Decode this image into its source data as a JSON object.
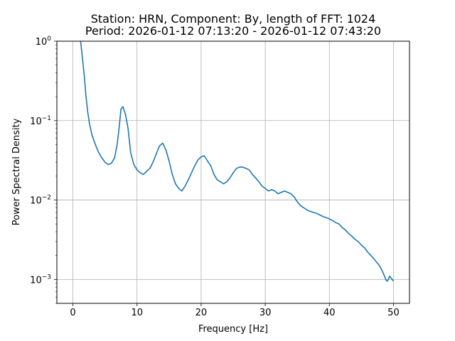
{
  "chart_data": {
    "type": "line",
    "title_line1": "Station: HRN, Component: By, length of FFT: 1024",
    "title_line2": "Period: 2026-01-12 07:13:20 - 2026-01-12 07:43:20",
    "xlabel": "Frequency [Hz]",
    "ylabel": "Power Spectral Density",
    "xlim": [
      -2.5,
      52.5
    ],
    "ylim": [
      0.0005,
      1
    ],
    "yscale": "log",
    "grid": true,
    "x_ticks": [
      0,
      10,
      20,
      30,
      40,
      50
    ],
    "x_tick_labels": [
      "0",
      "10",
      "20",
      "30",
      "40",
      "50"
    ],
    "y_ticks": [
      0.001,
      0.01,
      0.1,
      1
    ],
    "y_tick_labels": [
      {
        "base": "10",
        "exp": "−3"
      },
      {
        "base": "10",
        "exp": "−2"
      },
      {
        "base": "10",
        "exp": "−1"
      },
      {
        "base": "10",
        "exp": "0"
      }
    ],
    "color": "#1f77b4",
    "series": [
      {
        "x": [
          1.2,
          1.5,
          1.8,
          2.0,
          2.3,
          2.6,
          3.0,
          3.5,
          4.0,
          4.5,
          5.0,
          5.5,
          6.0,
          6.5,
          6.9,
          7.2,
          7.5,
          7.8,
          8.2,
          8.6,
          9.0,
          9.5,
          10.0,
          10.5,
          11.0,
          11.5,
          12.0,
          12.5,
          13.0,
          13.5,
          14.0,
          14.5,
          15.0,
          15.5,
          16.0,
          16.5,
          17.0,
          17.5,
          18.0,
          18.5,
          19.0,
          19.5,
          20.0,
          20.5,
          21.0,
          21.5,
          22.0,
          22.5,
          23.0,
          23.5,
          24.0,
          24.5,
          25.0,
          25.5,
          26.0,
          26.5,
          27.0,
          27.5,
          28.0,
          28.5,
          29.0,
          29.5,
          30.0,
          30.5,
          31.0,
          31.5,
          32.0,
          32.5,
          33.0,
          33.5,
          34.0,
          34.5,
          35.0,
          35.5,
          36.0,
          36.5,
          37.0,
          37.5,
          38.0,
          38.5,
          39.0,
          39.5,
          40.0,
          40.5,
          41.0,
          41.5,
          42.0,
          42.5,
          43.0,
          43.5,
          44.0,
          44.5,
          45.0,
          45.5,
          46.0,
          46.5,
          47.0,
          47.5,
          47.8,
          48.0,
          48.2,
          48.4,
          48.6,
          48.8,
          49.0,
          49.2,
          49.4,
          49.6,
          49.8,
          50.0
        ],
        "y": [
          1.0,
          0.6,
          0.35,
          0.22,
          0.13,
          0.09,
          0.065,
          0.05,
          0.04,
          0.034,
          0.03,
          0.028,
          0.029,
          0.034,
          0.05,
          0.08,
          0.14,
          0.15,
          0.12,
          0.08,
          0.04,
          0.028,
          0.024,
          0.022,
          0.021,
          0.023,
          0.025,
          0.03,
          0.038,
          0.048,
          0.052,
          0.043,
          0.031,
          0.021,
          0.016,
          0.014,
          0.013,
          0.015,
          0.018,
          0.022,
          0.027,
          0.032,
          0.035,
          0.036,
          0.031,
          0.027,
          0.021,
          0.018,
          0.017,
          0.016,
          0.017,
          0.019,
          0.022,
          0.025,
          0.026,
          0.026,
          0.025,
          0.024,
          0.021,
          0.019,
          0.017,
          0.015,
          0.014,
          0.013,
          0.0135,
          0.013,
          0.012,
          0.0125,
          0.013,
          0.0125,
          0.012,
          0.011,
          0.0095,
          0.0085,
          0.008,
          0.0075,
          0.0072,
          0.007,
          0.0068,
          0.0065,
          0.0062,
          0.006,
          0.0058,
          0.0055,
          0.0052,
          0.005,
          0.0045,
          0.0042,
          0.0038,
          0.0035,
          0.0032,
          0.003,
          0.0027,
          0.0025,
          0.0022,
          0.002,
          0.0018,
          0.0016,
          0.0015,
          0.0014,
          0.0013,
          0.0012,
          0.0011,
          0.001,
          0.00095,
          0.001,
          0.0011,
          0.00105,
          0.001,
          0.00095
        ]
      }
    ]
  }
}
